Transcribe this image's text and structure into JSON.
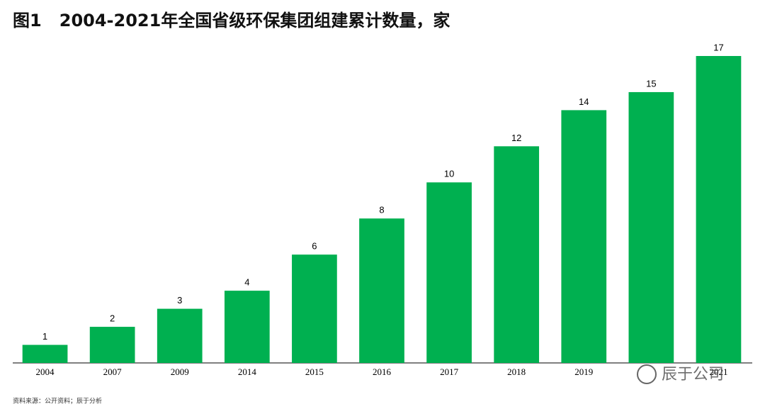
{
  "chart_data": {
    "type": "bar",
    "title": "图1   2004-2021年全国省级环保集团组建累计数量，家",
    "categories": [
      "2004",
      "2007",
      "2009",
      "2014",
      "2015",
      "2016",
      "2017",
      "2018",
      "2019",
      null,
      "2021"
    ],
    "values": [
      1,
      2,
      3,
      4,
      6,
      8,
      10,
      12,
      14,
      15,
      17
    ],
    "color": "#00b050",
    "source": "资料来源：公开资料；辰于分析",
    "watermark": "辰于公司"
  }
}
